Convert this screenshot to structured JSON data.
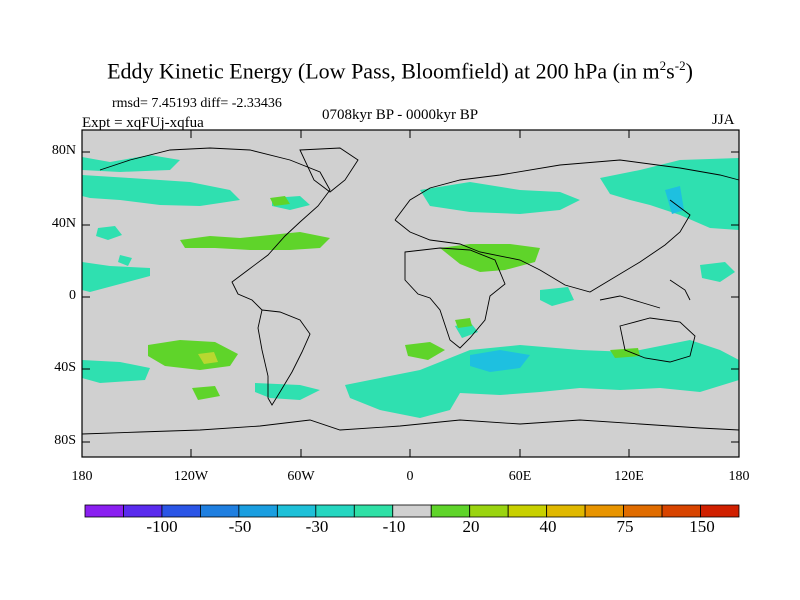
{
  "title_main": "Eddy Kinetic Energy (Low Pass, Bloomfield) at 200 hPa (in m",
  "title_sup1": "2",
  "title_mid": "s",
  "title_sup2": "-2",
  "title_end": ")",
  "stats": "rmsd= 7.45193 diff= -2.33436",
  "expt": "Expt = xqFUj-xqfua",
  "period": "0708kyr BP - 0000kyr BP",
  "season": "JJA",
  "y_axis_labels": [
    "80N",
    "40N",
    "0",
    "40S",
    "80S"
  ],
  "x_axis_labels": [
    "180",
    "120W",
    "60W",
    "0",
    "60E",
    "120E",
    "180"
  ],
  "colorbar": {
    "labels": [
      "-100",
      "-50",
      "-30",
      "-10",
      "20",
      "40",
      "75",
      "150"
    ],
    "colors": [
      "#8a1ff0",
      "#5a2bee",
      "#2a55e6",
      "#1f7fe0",
      "#1a9ee0",
      "#1ec0d8",
      "#25d6c0",
      "#2fe0a6",
      "#d0d0d0",
      "#5fd42a",
      "#9ad410",
      "#c8d000",
      "#e0b800",
      "#e89400",
      "#e06c00",
      "#d84400",
      "#d02000"
    ]
  },
  "map": {
    "background": "#d0d0d0",
    "positive_color": "#5fd42a",
    "positive_strong_color": "#b8d830",
    "negative_color": "#2fe0b0",
    "negative_strong_color": "#1ec0e0"
  }
}
